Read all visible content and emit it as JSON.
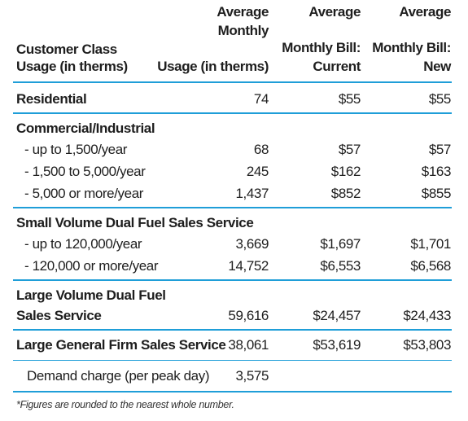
{
  "header": {
    "col1_line1": "Customer Class",
    "col1_line2": "Usage (in therms)",
    "col2_line1": "Average",
    "col2_line2": "Monthly",
    "col2_line3": "Usage (in therms)",
    "col3_line1": "Average",
    "col3_line2": "Monthly Bill:",
    "col3_line3": "Current",
    "col4_line1": "Average",
    "col4_line2": "Monthly Bill:",
    "col4_line3": "New"
  },
  "rows": [
    {
      "label": "Residential",
      "usage": "74",
      "current": "$55",
      "new": "$55"
    },
    {
      "label": "Commercial/Industrial"
    },
    {
      "label": "- up to 1,500/year",
      "usage": "68",
      "current": "$57",
      "new": "$57"
    },
    {
      "label": "- 1,500 to 5,000/year",
      "usage": "245",
      "current": "$162",
      "new": "$163"
    },
    {
      "label": "- 5,000 or more/year",
      "usage": "1,437",
      "current": "$852",
      "new": "$855"
    },
    {
      "label": "Small Volume Dual Fuel Sales Service"
    },
    {
      "label": "- up to 120,000/year",
      "usage": "3,669",
      "current": "$1,697",
      "new": "$1,701"
    },
    {
      "label": "- 120,000 or more/year",
      "usage": "14,752",
      "current": "$6,553",
      "new": "$6,568"
    },
    {
      "label": "Large Volume Dual Fuel"
    },
    {
      "label": "Sales Service",
      "usage": "59,616",
      "current": "$24,457",
      "new": "$24,433"
    },
    {
      "label": "Large General Firm Sales Service",
      "usage": "38,061",
      "current": "$53,619",
      "new": "$53,803"
    },
    {
      "label": "Demand charge (per peak day)",
      "usage": "3,575"
    }
  ],
  "footnote": "*Figures are rounded to the nearest whole number.",
  "colors": {
    "rule": "#1f9ed8",
    "text": "#1e1e1e"
  }
}
